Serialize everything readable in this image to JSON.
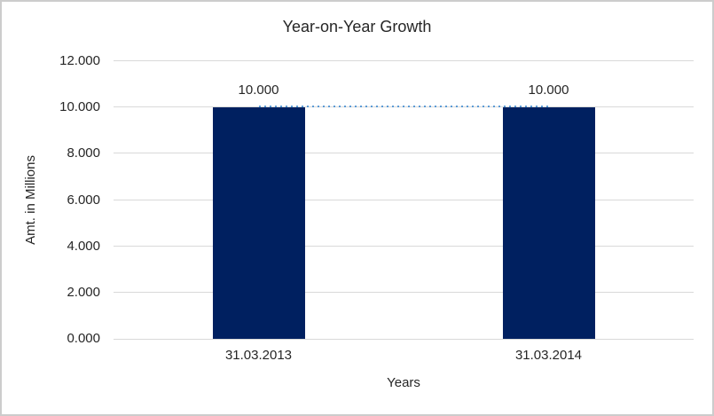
{
  "chart_data": {
    "type": "bar",
    "title": "Year-on-Year Growth",
    "xlabel": "Years",
    "ylabel": "Amt. in Millions",
    "categories": [
      "31.03.2013",
      "31.03.2014"
    ],
    "values": [
      10000,
      10000
    ],
    "data_labels": [
      "10.000",
      "10.000"
    ],
    "ylim": [
      0,
      12000
    ],
    "yticks": [
      {
        "value": 0,
        "label": "0.000"
      },
      {
        "value": 2000,
        "label": "2.000"
      },
      {
        "value": 4000,
        "label": "4.000"
      },
      {
        "value": 6000,
        "label": "6.000"
      },
      {
        "value": 8000,
        "label": "8.000"
      },
      {
        "value": 10000,
        "label": "10.000"
      },
      {
        "value": 12000,
        "label": "12.000"
      }
    ],
    "grid": true,
    "legend": "none",
    "trendline": {
      "style": "dotted",
      "value": 10000,
      "from_category_index": 0,
      "to_category_index": 1
    },
    "colors": {
      "bar": "#002060",
      "trendline": "#5b9bd5",
      "gridline": "#d9d9d9",
      "text": "#262626",
      "frame_border": "#cccccc"
    }
  }
}
